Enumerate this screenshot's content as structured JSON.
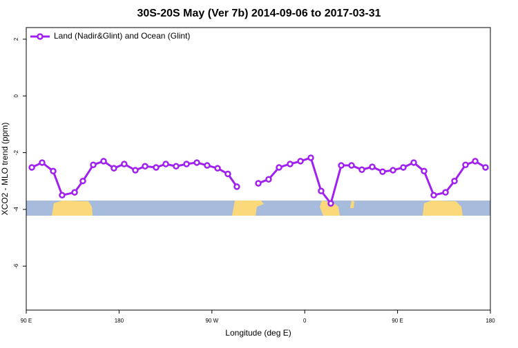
{
  "chart_data": {
    "type": "line",
    "title": "30S-20S May (Ver 7b)   2014-09-06 to 2017-03-31",
    "x_label": "Longitude (deg E)",
    "y_label": "XCO2 - MLO trend (ppm)",
    "x": [
      95.4,
      105.4,
      116.1,
      124.8,
      136.9,
      144.9,
      155,
      165,
      175,
      185,
      195.8,
      205.2,
      215.9,
      225.3,
      235.3,
      245.4,
      255.4,
      265.4,
      275.5,
      285.5,
      294.2,
      305,
      315,
      325,
      335.1,
      345.8,
      355.9,
      365.9,
      375.9,
      385.3,
      395.4,
      405.4,
      415.4,
      425.5,
      435.5,
      445.6,
      455.6,
      465.7,
      475.7,
      485.1,
      496.5,
      505.2,
      515.9,
      525.3,
      535.3
    ],
    "series": [
      {
        "name": "Land (Nadir&Glint) and Ocean (Glint)",
        "color": "#a020f0",
        "values": [
          -2.52,
          -2.35,
          -2.65,
          -3.5,
          -3.4,
          -3.0,
          -2.43,
          -2.3,
          -2.55,
          -2.4,
          -2.62,
          -2.48,
          -2.52,
          -2.4,
          -2.48,
          -2.4,
          -2.35,
          -2.45,
          -2.55,
          -2.75,
          -3.2,
          null,
          -3.08,
          -2.94,
          -2.52,
          -2.4,
          -2.3,
          -2.18,
          -3.35,
          -3.79,
          -2.45,
          -2.45,
          -2.6,
          -2.5,
          -2.67,
          -2.62,
          -2.52,
          -2.35,
          -2.65,
          -3.5,
          -3.4,
          -3.0,
          -2.43,
          -2.3,
          -2.52
        ]
      }
    ],
    "xlim": [
      90,
      540
    ],
    "xticks": [
      {
        "value": 90,
        "label": "90 E"
      },
      180,
      {
        "value": 270,
        "label": "90 W"
      },
      {
        "value": 360,
        "label": "0"
      },
      {
        "value": 450,
        "label": "90 E"
      },
      {
        "value": 540,
        "label": "180"
      }
    ],
    "ylim": [
      -7.55,
      2.41
    ],
    "yticks": [
      2,
      0,
      -2,
      -4,
      -6
    ],
    "legend": "top-left"
  }
}
